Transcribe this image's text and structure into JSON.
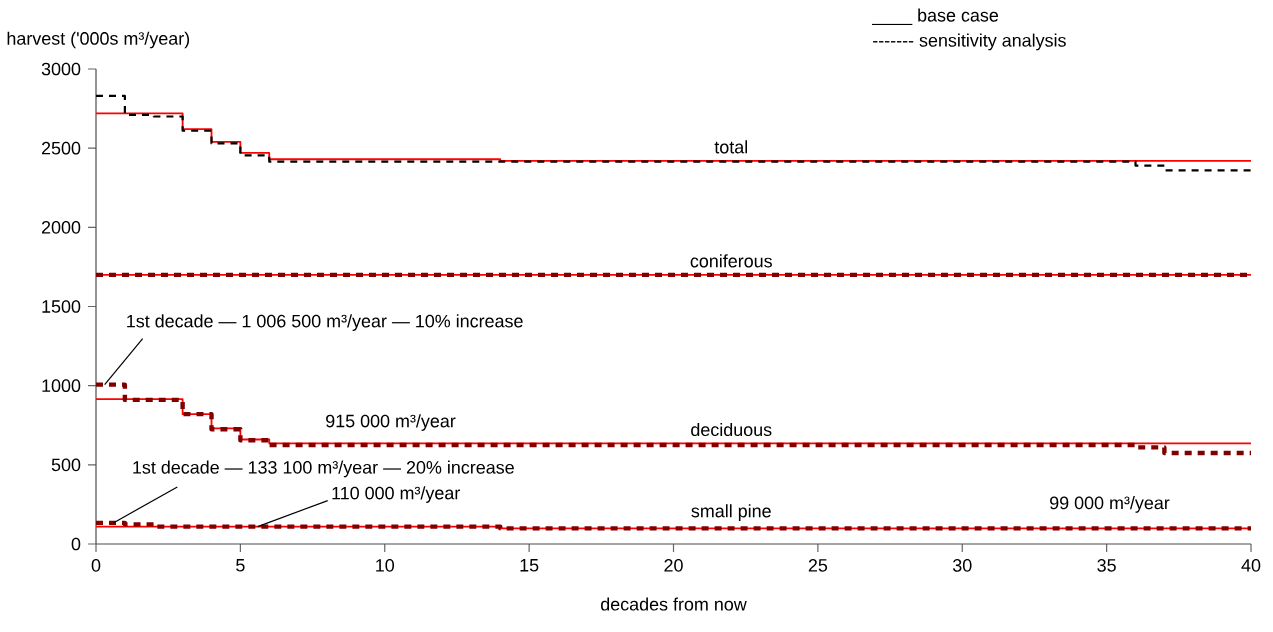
{
  "chart_data": {
    "type": "step",
    "xlabel": "decades from now",
    "ylabel": "harvest ('000s m³/year)",
    "xlim": [
      0,
      40
    ],
    "ylim": [
      0,
      3000
    ],
    "xticks": [
      0,
      5,
      10,
      15,
      20,
      25,
      30,
      35,
      40
    ],
    "yticks": [
      0,
      500,
      1000,
      1500,
      2000,
      2500,
      3000
    ],
    "series": [
      {
        "name": "total",
        "color": "#ff0000",
        "line_style": "solid",
        "x": [
          0,
          3,
          4,
          5,
          6,
          14,
          40
        ],
        "values": [
          2720,
          2620,
          2540,
          2470,
          2430,
          2420,
          2420
        ]
      },
      {
        "name": "coniferous",
        "color": "#ff0000",
        "line_style": "solid",
        "x": [
          0,
          40
        ],
        "values": [
          1700,
          1700
        ]
      },
      {
        "name": "deciduous",
        "color": "#ff0000",
        "line_style": "solid",
        "x": [
          0,
          3,
          4,
          5,
          6,
          40
        ],
        "values": [
          915,
          820,
          730,
          660,
          635,
          635
        ]
      },
      {
        "name": "small pine",
        "color": "#ff0000",
        "line_style": "solid",
        "x": [
          0,
          14,
          40
        ],
        "values": [
          110,
          99,
          99
        ]
      },
      {
        "color": "#000000",
        "line_style": "dashed",
        "x": [
          0,
          1,
          2,
          3,
          4,
          5,
          6,
          36,
          37,
          40
        ],
        "values": [
          2830,
          2710,
          2700,
          2610,
          2530,
          2455,
          2415,
          2390,
          2360,
          2360
        ]
      },
      {
        "color": "#800000",
        "line_style": "dashed",
        "x": [
          0,
          40
        ],
        "values": [
          1700,
          1700
        ]
      },
      {
        "color": "#800000",
        "line_style": "dashed",
        "x": [
          0,
          1,
          3,
          4,
          5,
          6,
          36,
          37,
          40
        ],
        "values": [
          1006.5,
          910,
          820,
          725,
          655,
          625,
          610,
          575,
          575
        ]
      },
      {
        "color": "#800000",
        "line_style": "dashed",
        "x": [
          0,
          1,
          2,
          14,
          40
        ],
        "values": [
          133.1,
          124,
          110,
          99,
          99
        ]
      }
    ],
    "annotations": [
      "____ base case",
      "------- sensitivity analysis",
      {
        "text": "1st decade — 1 006 500 m³/year — 10% increase",
        "x": 0.3,
        "y": 1006.5
      },
      "915 000 m³/year",
      {
        "text": "1st decade — 133 100 m³/year — 20% increase",
        "x": 0.6,
        "y": 133.1
      },
      {
        "text": "110 000 m³/year",
        "x": 5.6,
        "y": 110
      },
      "99 000 m³/year"
    ]
  }
}
